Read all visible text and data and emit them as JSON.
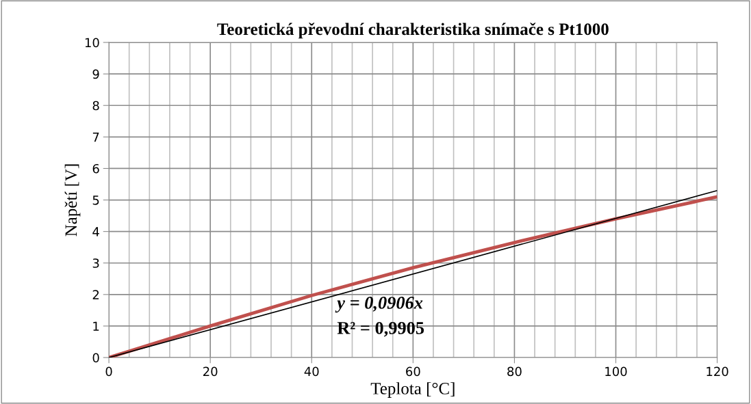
{
  "chart_data": {
    "type": "line",
    "title": "Teoretická převodní charakteristika snímače s Pt1000",
    "xlabel": "Teplota [°C]",
    "ylabel": "Napětí [V]",
    "x": [
      0,
      20,
      40,
      60,
      80,
      100,
      120
    ],
    "series": [
      {
        "color": "#c0504d",
        "values": [
          0,
          1.0,
          1.97,
          2.85,
          3.65,
          4.4,
          5.1
        ]
      },
      {
        "type": "line",
        "color": "#000000",
        "x": [
          0,
          120
        ],
        "values": [
          0,
          5.3
        ]
      }
    ],
    "annotations": [
      "y = 0,0906x",
      "R² = 0,9905"
    ],
    "xlim": [
      0,
      120
    ],
    "xticks": [
      0,
      20,
      40,
      60,
      80,
      100,
      120
    ],
    "ylim": [
      0,
      10
    ],
    "yticks": [
      0,
      1,
      2,
      3,
      4,
      5,
      6,
      7,
      8,
      9,
      10
    ],
    "grid": true,
    "marker": "none",
    "line_style": "solid",
    "legend": false
  }
}
